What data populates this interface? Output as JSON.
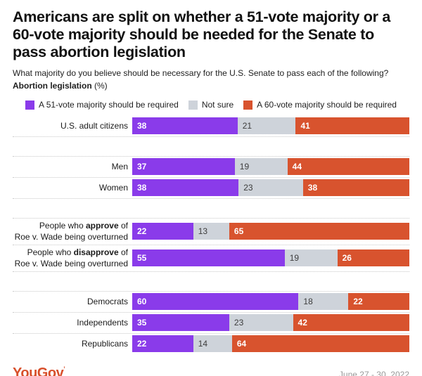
{
  "title_lines": [
    "Americans are split on whether a 51-vote majority or a",
    "60-vote majority should be needed for the Senate to",
    "pass abortion legislation"
  ],
  "subtitle": "What majority do you believe should be necessary for the U.S. Senate to pass each of the following?",
  "measure_label": "Abortion legislation",
  "measure_suffix": " (%)",
  "legend": [
    {
      "key": "51-vote-majority",
      "label": "A 51-vote majority should be required",
      "color": "#8a3bea"
    },
    {
      "key": "not-sure",
      "label": "Not sure",
      "color": "#ced3da"
    },
    {
      "key": "60-vote-majority",
      "label": "A 60-vote majority should be required",
      "color": "#d8532e"
    }
  ],
  "footer": {
    "brand": "YouGov",
    "trademark_tick": "’",
    "date_range": "June 27 - 30, 2022"
  },
  "chart_data": {
    "type": "bar",
    "orientation": "horizontal",
    "stacked": true,
    "unit": "%",
    "value_range": [
      0,
      100
    ],
    "series_names": [
      "A 51-vote majority should be required",
      "Not sure",
      "A 60-vote majority should be required"
    ],
    "groups": [
      {
        "rows": [
          {
            "label_lines": [
              [
                {
                  "t": "U.S. adult citizens",
                  "b": false
                }
              ]
            ],
            "values": [
              38,
              21,
              41
            ]
          }
        ]
      },
      {
        "rows": [
          {
            "label_lines": [
              [
                {
                  "t": "Men",
                  "b": false
                }
              ]
            ],
            "values": [
              37,
              19,
              44
            ]
          },
          {
            "label_lines": [
              [
                {
                  "t": "Women",
                  "b": false
                }
              ]
            ],
            "values": [
              38,
              23,
              38
            ]
          }
        ]
      },
      {
        "rows": [
          {
            "label_lines": [
              [
                {
                  "t": "People who ",
                  "b": false
                },
                {
                  "t": "approve",
                  "b": true
                },
                {
                  "t": " of",
                  "b": false
                }
              ],
              [
                {
                  "t": "Roe v. Wade being overturned",
                  "b": false
                }
              ]
            ],
            "values": [
              22,
              13,
              65
            ]
          },
          {
            "label_lines": [
              [
                {
                  "t": "People who ",
                  "b": false
                },
                {
                  "t": "disapprove",
                  "b": true
                },
                {
                  "t": " of",
                  "b": false
                }
              ],
              [
                {
                  "t": "Roe v. Wade being overturned",
                  "b": false
                }
              ]
            ],
            "values": [
              55,
              19,
              26
            ]
          }
        ]
      },
      {
        "rows": [
          {
            "label_lines": [
              [
                {
                  "t": "Democrats",
                  "b": false
                }
              ]
            ],
            "values": [
              60,
              18,
              22
            ]
          },
          {
            "label_lines": [
              [
                {
                  "t": "Independents",
                  "b": false
                }
              ]
            ],
            "values": [
              35,
              23,
              42
            ]
          },
          {
            "label_lines": [
              [
                {
                  "t": "Republicans",
                  "b": false
                }
              ]
            ],
            "values": [
              22,
              14,
              64
            ]
          }
        ]
      }
    ]
  }
}
